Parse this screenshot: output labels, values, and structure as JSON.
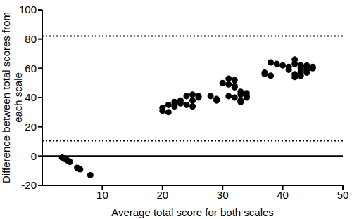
{
  "chart_data": {
    "type": "scatter",
    "x_label": "Average total score for both scales",
    "y_label": "Difference between total scores from each scale",
    "x": [
      3.3,
      3.8,
      4.2,
      4.6,
      5.8,
      6.3,
      8.0,
      20,
      20,
      21,
      21,
      22,
      22,
      23,
      23,
      24,
      24,
      25,
      25,
      25,
      26,
      26,
      28,
      29,
      29,
      30,
      31,
      31,
      31,
      32,
      32,
      32,
      32,
      33,
      33,
      33,
      33,
      34,
      34,
      34,
      37,
      37,
      38,
      38,
      39,
      40,
      41,
      41,
      42,
      42,
      42,
      42,
      43,
      43,
      43,
      43,
      43,
      44,
      44,
      44,
      44,
      45,
      45
    ],
    "values": [
      -1,
      -2,
      -3,
      -4,
      -8,
      -9,
      -13,
      31,
      33,
      35,
      30,
      34,
      37,
      36,
      38,
      35,
      41,
      34,
      38,
      42,
      41,
      40,
      41,
      38,
      39,
      50,
      49,
      53,
      41,
      52,
      48,
      40,
      47,
      44,
      42,
      38,
      37,
      43,
      41,
      40,
      57,
      56,
      64,
      55,
      63,
      62,
      59,
      61,
      63,
      66,
      54,
      56,
      55,
      58,
      60,
      62,
      61,
      61,
      59,
      57,
      62,
      60,
      61
    ],
    "color": "#000000",
    "marker": "circle",
    "xlim": [
      0,
      50
    ],
    "xticks": [
      10,
      20,
      30,
      40,
      50
    ],
    "ylim": [
      -20,
      100
    ],
    "yticks": [
      -20,
      0,
      20,
      40,
      60,
      80,
      100
    ],
    "reference_lines": [
      {
        "value": 82,
        "line_style": "dotted"
      },
      {
        "value": 10.5,
        "line_style": "dotted"
      },
      {
        "value": 0,
        "line_style": "solid"
      }
    ]
  }
}
